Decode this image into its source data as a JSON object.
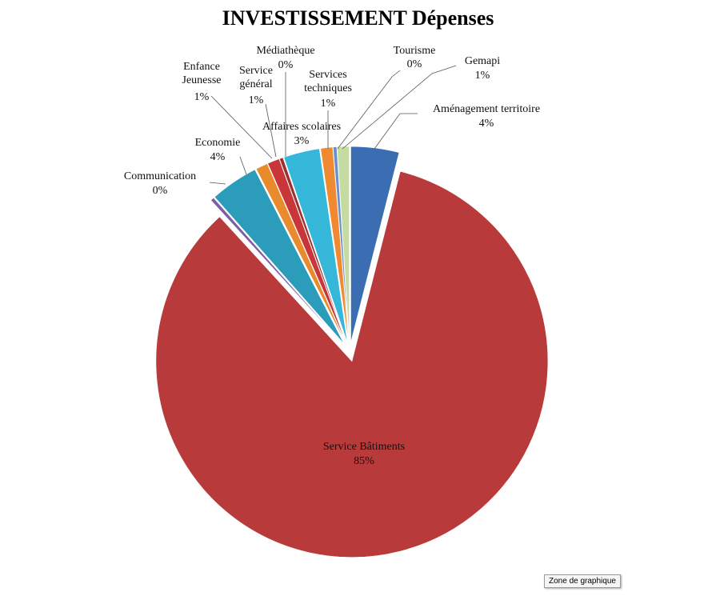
{
  "chart_data": {
    "type": "pie",
    "title": "INVESTISSEMENT Dépenses",
    "categories": [
      "Aménagement territoire",
      "Service Bâtiments",
      "Communication",
      "Economie",
      "Enfance Jeunesse",
      "Service général",
      "Médiathèque",
      "Affaires scolaires",
      "Services techniques",
      "Tourisme",
      "Gemapi"
    ],
    "values": [
      4,
      85,
      0.3,
      4,
      1,
      1,
      0.3,
      3,
      1,
      0.3,
      1
    ],
    "value_labels": [
      "4%",
      "85%",
      "0%",
      "4%",
      "1%",
      "1%",
      "0%",
      "3%",
      "1%",
      "0%",
      "1%"
    ],
    "colors": [
      "#3b6db3",
      "#b93a3b",
      "#7a5fa8",
      "#2b9cba",
      "#e98a2d",
      "#c8363a",
      "#9b3030",
      "#34b7d8",
      "#ef8a30",
      "#6a8fd0",
      "#c4dca2"
    ]
  },
  "tooltip": "Zone de graphique"
}
